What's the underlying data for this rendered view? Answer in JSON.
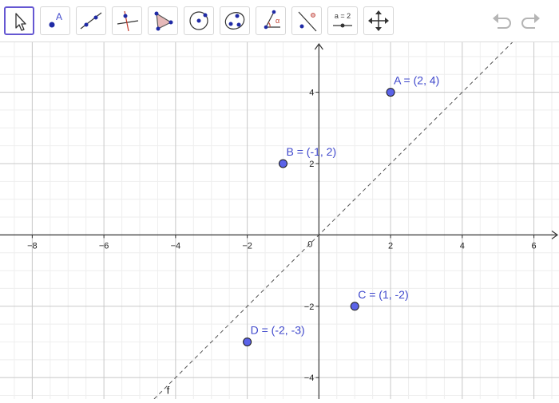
{
  "toolbar": {
    "tools": [
      {
        "name": "move-tool-icon"
      },
      {
        "name": "point-tool-icon",
        "glyph": "A"
      },
      {
        "name": "line-tool-icon"
      },
      {
        "name": "perpendicular-line-tool-icon"
      },
      {
        "name": "polygon-tool-icon"
      },
      {
        "name": "circle-center-point-tool-icon"
      },
      {
        "name": "conic-tool-icon"
      },
      {
        "name": "angle-tool-icon",
        "glyph": "α"
      },
      {
        "name": "reflect-tool-icon"
      },
      {
        "name": "slider-tool-icon",
        "glyph": "a = 2"
      },
      {
        "name": "move-graphics-view-tool-icon"
      }
    ],
    "active_tool": "move-tool-icon",
    "undo_icon": "undo-icon",
    "redo_icon": "redo-icon"
  },
  "graph": {
    "x_range": [
      -8.9,
      6.7
    ],
    "y_range": [
      -4.6,
      5.4
    ],
    "x_ticks": [
      -8,
      -6,
      -4,
      -2,
      2,
      4,
      6
    ],
    "y_ticks": [
      -4,
      -2,
      2,
      4
    ],
    "origin_label": "0",
    "grid": true,
    "colors": {
      "point_fill": "#5b63e8",
      "point_stroke": "#1a1a1a",
      "label": "#3f48cc",
      "major_grid": "#c8c8c8",
      "minor_grid": "#eeeeee",
      "axis": "#333333",
      "line": "#555555",
      "active_tool": "#6557d2"
    },
    "points": [
      {
        "name": "A",
        "x": 2,
        "y": 4,
        "label": "A = (2, 4)"
      },
      {
        "name": "B",
        "x": -1,
        "y": 2,
        "label": "B = (-1, 2)"
      },
      {
        "name": "C",
        "x": 1,
        "y": -2,
        "label": "C = (1, -2)"
      },
      {
        "name": "D",
        "x": -2,
        "y": -3,
        "label": "D = (-2, -3)"
      }
    ],
    "line": {
      "name": "f",
      "label": "f",
      "equation": "y = x",
      "style": "dashed"
    }
  }
}
